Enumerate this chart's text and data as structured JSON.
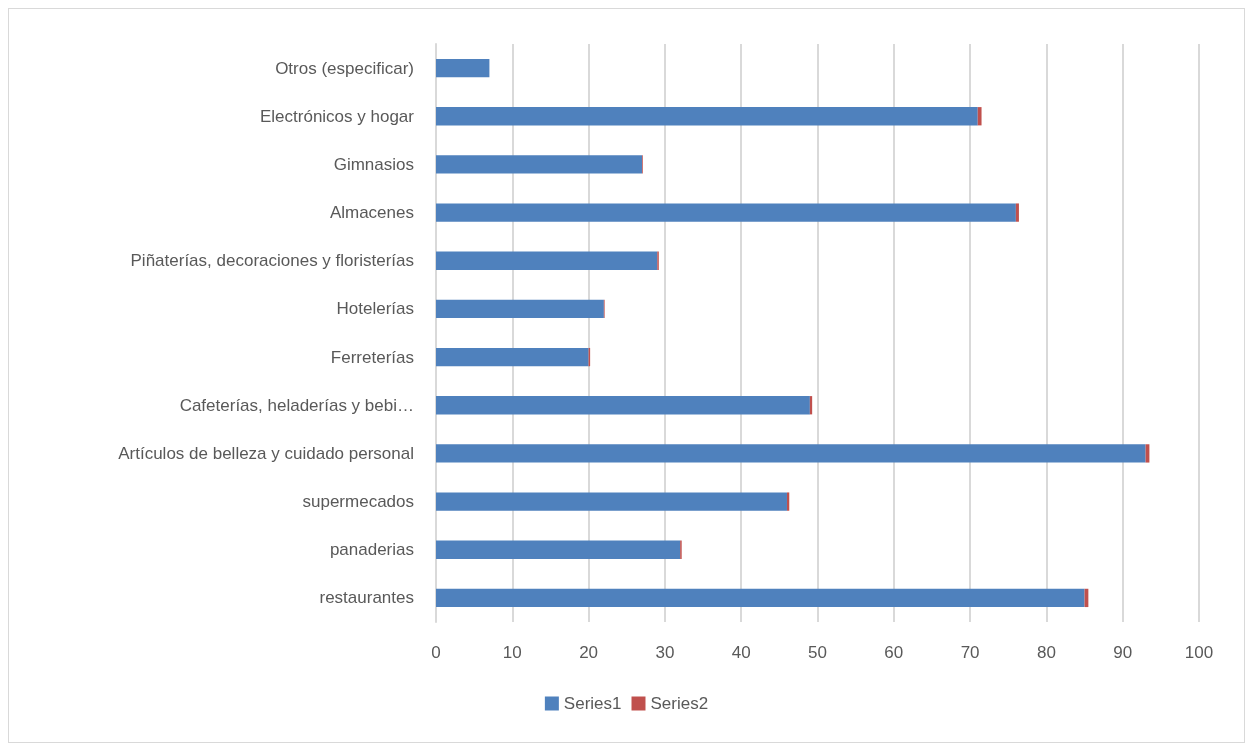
{
  "chart_data": {
    "type": "bar",
    "orientation": "horizontal",
    "stacked": true,
    "categories": [
      "Otros (especificar)",
      "Electrónicos y hogar",
      "Gimnasios",
      "Almacenes",
      "Piñaterías, decoraciones y floristerías",
      "Hotelerías",
      "Ferreterías",
      "Cafeterías, heladerías y bebi…",
      "Artículos de belleza y cuidado personal",
      "supermecados",
      "panaderias",
      "restaurantes"
    ],
    "series": [
      {
        "name": "Series1",
        "color": "#4f81bd",
        "values": [
          7,
          71,
          27,
          76,
          29,
          22,
          20,
          49,
          93,
          46,
          32,
          85
        ]
      },
      {
        "name": "Series2",
        "color": "#c0504d",
        "values": [
          0,
          0.5,
          0.1,
          0.4,
          0.2,
          0.1,
          0.2,
          0.3,
          0.5,
          0.3,
          0.2,
          0.5
        ]
      }
    ],
    "xlim": [
      0,
      100
    ],
    "xticks": [
      0,
      10,
      20,
      30,
      40,
      50,
      60,
      70,
      80,
      90,
      100
    ],
    "grid": "x",
    "legend": "bottom"
  }
}
